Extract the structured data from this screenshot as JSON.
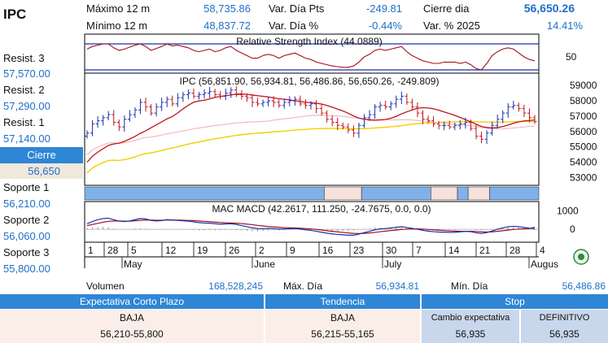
{
  "ticker": "IPC",
  "header": {
    "max12_label": "Máximo 12 m",
    "max12_value": "58,735.86",
    "min12_label": "Mínimo 12 m",
    "min12_value": "48,837.72",
    "var_pts_label": "Var. Día Pts",
    "var_pts_value": "-249.81",
    "var_pct_label": "Var. Día %",
    "var_pct_value": "-0.44%",
    "close_label": "Cierre dia",
    "close_value": "56,650.26",
    "var_2025_label": "Var. % 2025",
    "var_2025_value": "14.41%"
  },
  "levels": {
    "r3_label": "Resist. 3",
    "r3_value": "57,570.00",
    "r2_label": "Resist. 2",
    "r2_value": "57,290.00",
    "r1_label": "Resist. 1",
    "r1_value": "57,140.00",
    "cierre_label": "Cierre",
    "cierre_value": "56,650",
    "s1_label": "Soporte 1",
    "s1_value": "56,210.00",
    "s2_label": "Soporte 2",
    "s2_value": "56,060.00",
    "s3_label": "Soporte 3",
    "s3_value": "55,800.00"
  },
  "footer": {
    "volumen_label": "Volumen",
    "volumen_value": "168,528,245",
    "max_dia_label": "Máx. Día",
    "max_dia_value": "56,934.81",
    "min_dia_label": "Mín. Día",
    "min_dia_value": "56,486.86",
    "expectativa_label": "Expectativa Corto Plazo",
    "expectativa_dir": "BAJA",
    "expectativa_range": "56,210-55,800",
    "tendencia_label": "Tendencia",
    "tendencia_dir": "BAJA",
    "tendencia_range": "56,215-55,165",
    "stop_label": "Stop",
    "cambio_label": "Cambio expectativa",
    "cambio_value": "56,935",
    "definitivo_label": "DEFINITIVO",
    "definitivo_value": "56,935"
  },
  "colors": {
    "accent_blue": "#2e86d6",
    "candle_up": "#1a2fb0",
    "candle_down": "#c0141c",
    "ma_short": "#c0141c",
    "ma_mid": "#f2b8c0",
    "ma_long": "#f0d000",
    "trend_up_band": "#7fb2e8",
    "trend_down_band": "#f6e0dc"
  },
  "chart_data": {
    "type": "candlestick",
    "price_title": "IPC (56,851.90, 56,934.81, 56,486.86, 56,650.26, -249.809)",
    "rsi_title": "Relative Strength Index (44.0889)",
    "macd_title": "MAC MACD (42.2617, 111.250, -24.7675, 0.0, 0.0)",
    "x_tick_labels": [
      "1",
      "28",
      "5",
      "12",
      "19",
      "26",
      "2",
      "9",
      "16",
      "23",
      "30",
      "7",
      "14",
      "21",
      "28",
      "4"
    ],
    "month_labels": [
      "May",
      "June",
      "July",
      "Augus"
    ],
    "price_axis": {
      "ticks": [
        53000,
        54000,
        55000,
        56000,
        57000,
        58000,
        59000
      ],
      "range": [
        52500,
        59800
      ]
    },
    "rsi_axis": {
      "ticks": [
        50
      ],
      "range": [
        25,
        85
      ],
      "upper_line": 70,
      "lower_line": 30
    },
    "macd_axis": {
      "ticks": [
        0,
        1000
      ],
      "range": [
        -700,
        1500
      ]
    },
    "close": [
      55900,
      56500,
      56700,
      56900,
      57100,
      56600,
      56300,
      56800,
      57100,
      57400,
      57900,
      57600,
      57200,
      57600,
      57900,
      58100,
      57800,
      58200,
      58400,
      58500,
      58300,
      58400,
      58500,
      58600,
      58400,
      58300,
      58500,
      58700,
      58400,
      58300,
      58200,
      57900,
      57800,
      57900,
      58000,
      57900,
      57700,
      57900,
      58000,
      58100,
      57800,
      57700,
      57800,
      57500,
      57200,
      56800,
      56600,
      56400,
      56300,
      56100,
      55900,
      56400,
      56900,
      57100,
      57600,
      57700,
      57600,
      57800,
      58100,
      58300,
      57900,
      57600,
      57200,
      56800,
      56700,
      56500,
      56400,
      56400,
      56300,
      56400,
      56500,
      56600,
      56200,
      55700,
      55500,
      55900,
      56400,
      56800,
      57200,
      57600,
      57700,
      57500,
      57200,
      56900,
      56650
    ],
    "rsi": [
      62,
      66,
      68,
      70,
      70,
      64,
      60,
      62,
      65,
      68,
      70,
      66,
      60,
      63,
      66,
      70,
      67,
      68,
      66,
      64,
      60,
      58,
      60,
      62,
      58,
      60,
      64,
      66,
      60,
      56,
      52,
      48,
      48,
      52,
      54,
      52,
      48,
      52,
      54,
      56,
      52,
      48,
      46,
      42,
      40,
      38,
      36,
      35,
      34,
      34,
      36,
      42,
      50,
      54,
      60,
      62,
      60,
      62,
      64,
      66,
      58,
      52,
      48,
      44,
      42,
      40,
      40,
      42,
      42,
      42,
      40,
      42,
      38,
      32,
      30,
      40,
      52,
      58,
      62,
      64,
      62,
      56,
      50,
      46,
      44
    ],
    "macd_line": [
      300,
      420,
      520,
      580,
      600,
      520,
      440,
      420,
      450,
      520,
      580,
      560,
      480,
      450,
      470,
      520,
      500,
      480,
      460,
      440,
      400,
      360,
      340,
      330,
      300,
      280,
      290,
      300,
      260,
      200,
      140,
      80,
      40,
      40,
      50,
      40,
      10,
      20,
      30,
      40,
      10,
      -30,
      -60,
      -110,
      -160,
      -210,
      -250,
      -280,
      -300,
      -320,
      -320,
      -260,
      -180,
      -110,
      -30,
      20,
      40,
      70,
      110,
      140,
      100,
      50,
      0,
      -60,
      -100,
      -130,
      -150,
      -160,
      -170,
      -160,
      -140,
      -110,
      -130,
      -190,
      -230,
      -180,
      -90,
      0,
      80,
      140,
      160,
      140,
      100,
      60,
      40
    ],
    "macd_signal": [
      200,
      260,
      320,
      380,
      430,
      450,
      450,
      440,
      440,
      460,
      480,
      500,
      500,
      490,
      490,
      500,
      500,
      500,
      490,
      480,
      470,
      450,
      430,
      410,
      390,
      370,
      350,
      340,
      330,
      310,
      280,
      250,
      210,
      180,
      150,
      130,
      110,
      90,
      80,
      70,
      60,
      40,
      20,
      -10,
      -40,
      -80,
      -110,
      -140,
      -170,
      -200,
      -220,
      -230,
      -220,
      -200,
      -170,
      -130,
      -100,
      -70,
      -40,
      -10,
      10,
      20,
      20,
      10,
      -10,
      -30,
      -50,
      -70,
      -90,
      -100,
      -110,
      -110,
      -110,
      -120,
      -140,
      -150,
      -140,
      -110,
      -80,
      -40,
      -10,
      10,
      30,
      40,
      110
    ]
  }
}
